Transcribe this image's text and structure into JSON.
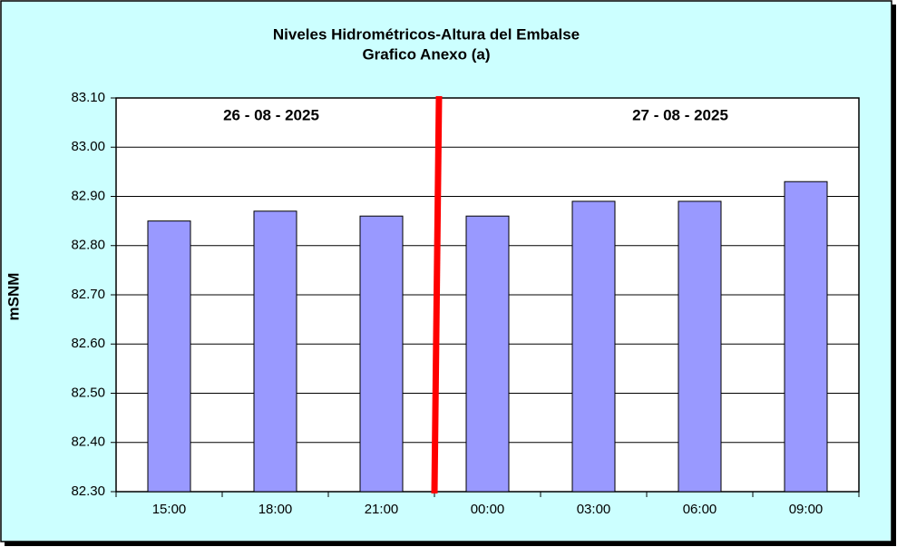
{
  "chart_data": {
    "type": "bar",
    "title": "Niveles Hidrométricos-Altura del Embalse",
    "subtitle": "Grafico Anexo (a)",
    "y_label": "mSNM",
    "annotations": [
      "26 - 08 - 2025",
      "27 - 08 - 2025"
    ],
    "categories": [
      "15:00",
      "18:00",
      "21:00",
      "00:00",
      "03:00",
      "06:00",
      "09:00"
    ],
    "values": [
      82.85,
      82.87,
      82.86,
      82.86,
      82.89,
      82.89,
      82.93
    ],
    "color": "#9999ff",
    "ylim": [
      82.3,
      83.1
    ],
    "yticks": [
      {
        "value": 82.3,
        "label": "82.30"
      },
      {
        "value": 82.4,
        "label": "82.40"
      },
      {
        "value": 82.5,
        "label": "82.50"
      },
      {
        "value": 82.6,
        "label": "82.60"
      },
      {
        "value": 82.7,
        "label": "82.70"
      },
      {
        "value": 82.8,
        "label": "82.80"
      },
      {
        "value": 82.9,
        "label": "82.90"
      },
      {
        "value": 83.0,
        "label": "83.00"
      },
      {
        "value": 83.1,
        "label": "83.10"
      }
    ],
    "grid": true
  }
}
